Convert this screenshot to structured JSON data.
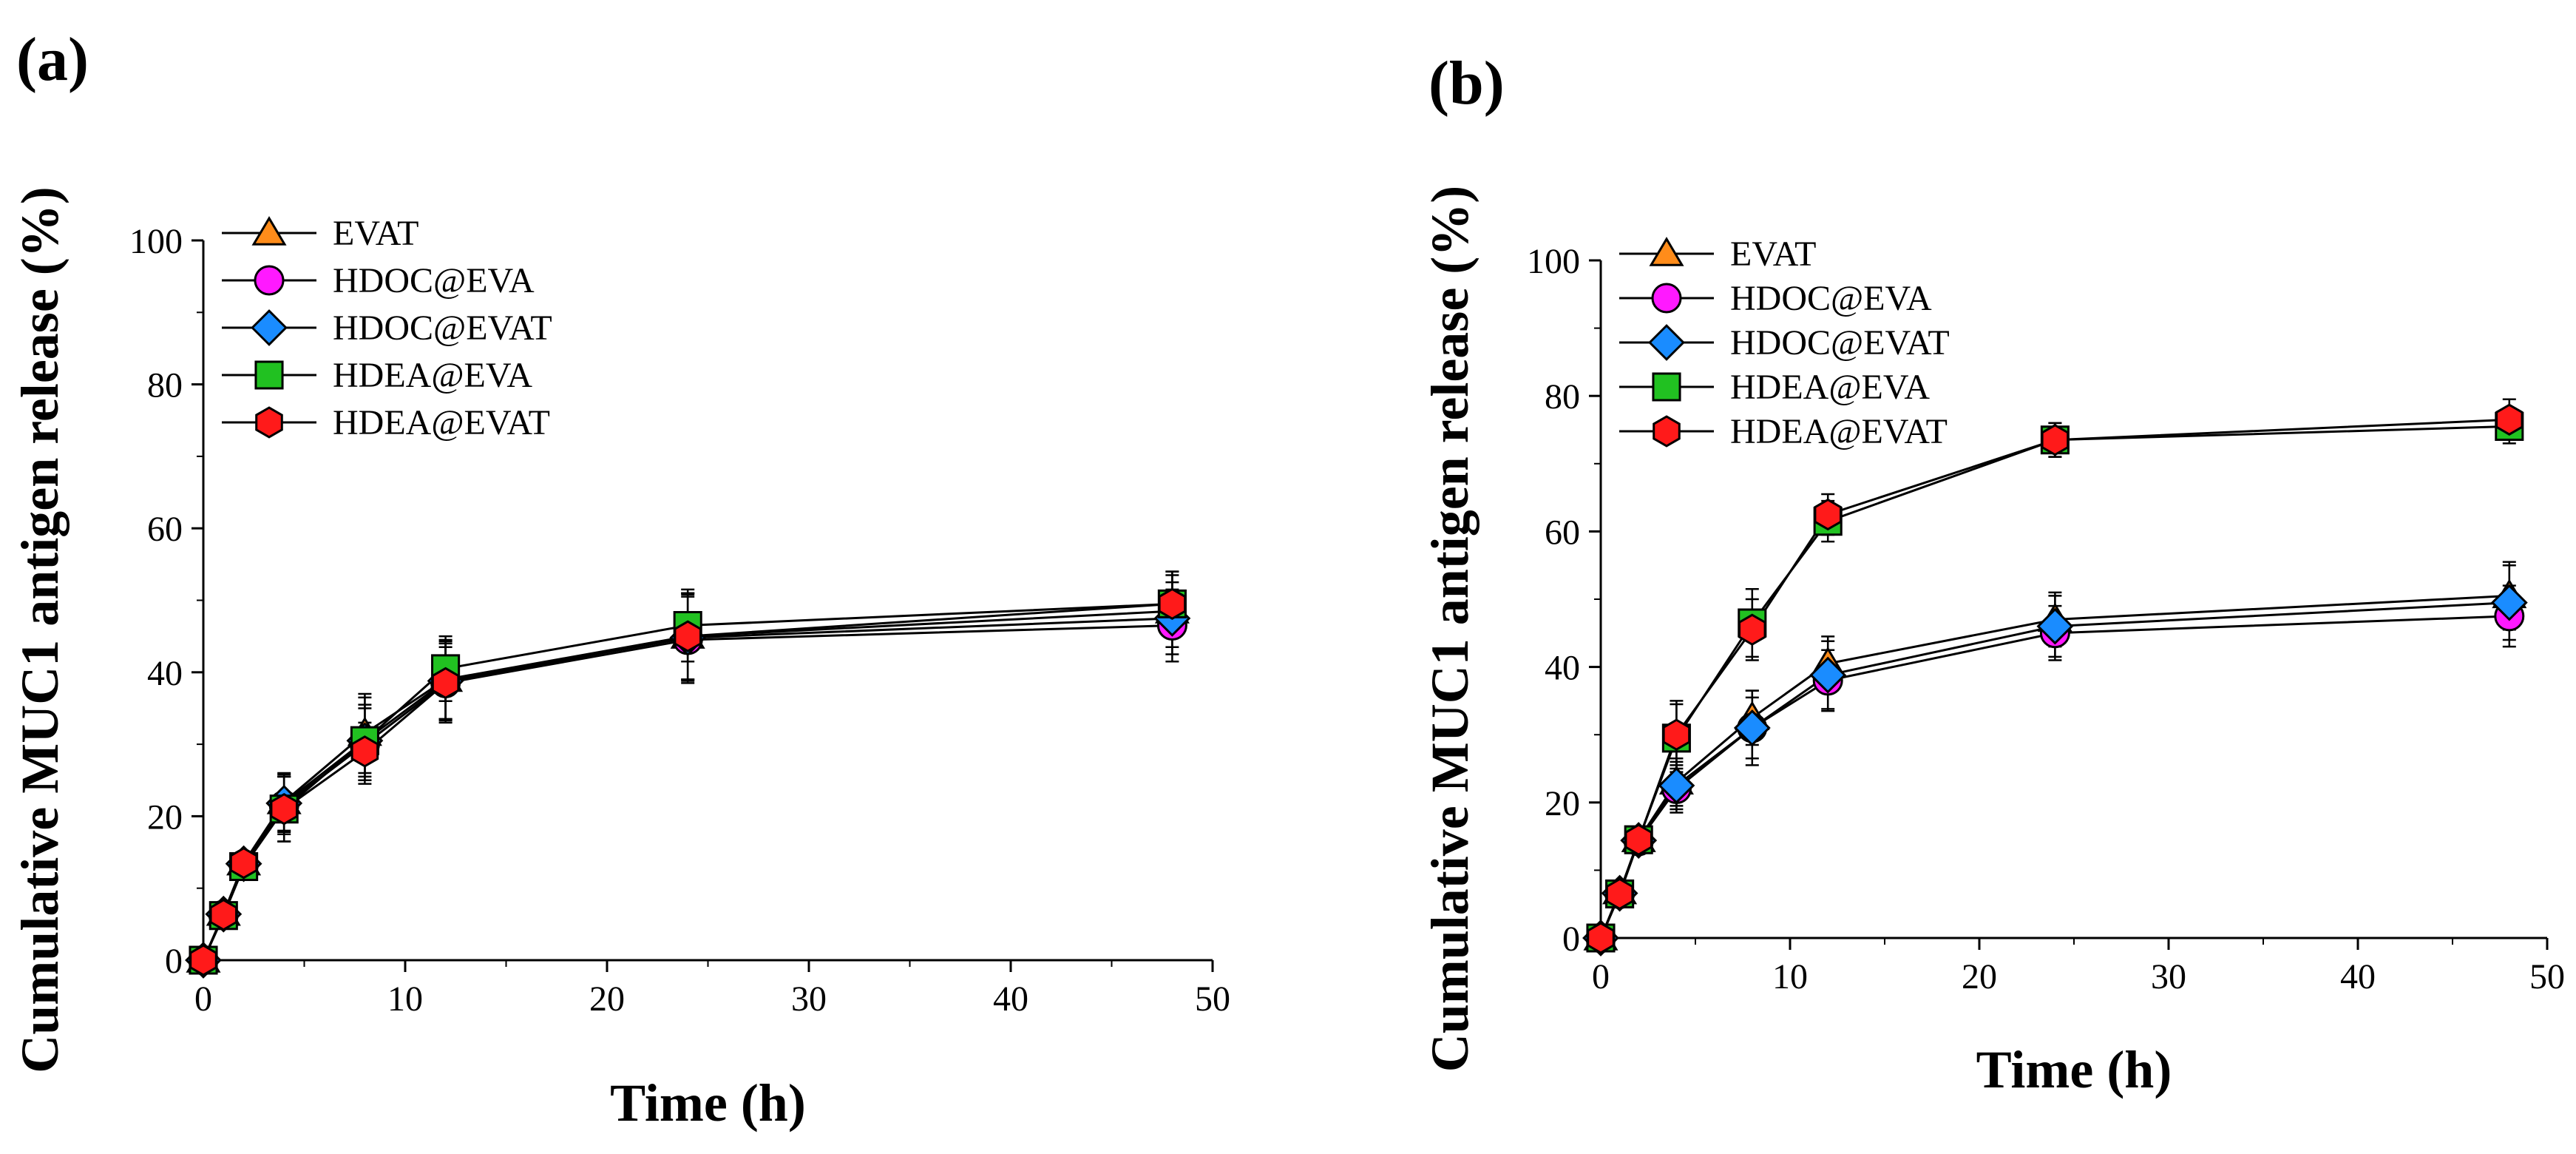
{
  "figure": {
    "panel_labels": [
      "(a)",
      "(b)"
    ]
  },
  "chart_data": [
    {
      "type": "line",
      "panel": "(a)",
      "title": "",
      "xlabel": "Time (h)",
      "ylabel": "Cumulative MUC1 antigen release (%)",
      "xlim": [
        0,
        50
      ],
      "ylim": [
        0,
        100
      ],
      "xticks": [
        "0",
        "10",
        "20",
        "30",
        "40",
        "50"
      ],
      "yticks": [
        "0",
        "20",
        "40",
        "60",
        "80",
        "100"
      ],
      "legend_position": "top-left",
      "x": [
        0,
        1,
        2,
        4,
        8,
        12,
        24,
        48
      ],
      "series": [
        {
          "name": "EVAT",
          "marker": "triangle",
          "color": "#ff8c1a",
          "values": [
            0,
            6.5,
            13.5,
            22,
            31.5,
            39,
            45,
            48.5
          ],
          "errors": [
            0,
            1,
            1.5,
            4,
            5.5,
            5.5,
            6,
            5
          ]
        },
        {
          "name": "HDOC@EVA",
          "marker": "circle",
          "color": "#ff19ff",
          "values": [
            0,
            6.3,
            13.3,
            21.5,
            30,
            38.5,
            44.5,
            46.5
          ],
          "errors": [
            0,
            1,
            1.5,
            4,
            5,
            5.5,
            6,
            5
          ]
        },
        {
          "name": "HDOC@EVAT",
          "marker": "diamond",
          "color": "#1a8cff",
          "values": [
            0,
            6.4,
            13.4,
            21.8,
            30.5,
            38.8,
            44.8,
            47.5
          ],
          "errors": [
            0,
            1,
            1.5,
            4,
            5,
            5.5,
            6,
            5
          ]
        },
        {
          "name": "HDEA@EVA",
          "marker": "square",
          "color": "#21c121",
          "values": [
            0,
            6.2,
            13,
            21,
            30.5,
            40.5,
            46.5,
            49.5
          ],
          "errors": [
            0,
            1,
            1.5,
            4.5,
            6,
            4.5,
            5,
            4.5
          ]
        },
        {
          "name": "HDEA@EVAT",
          "marker": "hexagon",
          "color": "#ff1a1a",
          "values": [
            0,
            6.3,
            13.5,
            21,
            29,
            38.5,
            45,
            49.5
          ],
          "errors": [
            0,
            1,
            1.5,
            4.5,
            4,
            5,
            6,
            4.5
          ]
        }
      ]
    },
    {
      "type": "line",
      "panel": "(b)",
      "title": "",
      "xlabel": "Time (h)",
      "ylabel": "Cumulative MUC1 antigen release (%)",
      "xlim": [
        0,
        50
      ],
      "ylim": [
        0,
        100
      ],
      "xticks": [
        "0",
        "10",
        "20",
        "30",
        "40",
        "50"
      ],
      "yticks": [
        "0",
        "20",
        "40",
        "60",
        "80",
        "100"
      ],
      "legend_position": "top-left",
      "x": [
        0,
        1,
        2,
        4,
        8,
        12,
        24,
        48
      ],
      "series": [
        {
          "name": "EVAT",
          "marker": "triangle",
          "color": "#ff8c1a",
          "values": [
            0,
            6.8,
            14.5,
            23,
            32.5,
            40.5,
            47,
            50.5
          ],
          "errors": [
            0,
            1,
            1.5,
            3.5,
            4,
            4,
            4,
            5
          ]
        },
        {
          "name": "HDOC@EVA",
          "marker": "circle",
          "color": "#ff19ff",
          "values": [
            0,
            6.5,
            14.3,
            22,
            31,
            38,
            45,
            47.5
          ],
          "errors": [
            0,
            1,
            1.5,
            3.5,
            4.5,
            4.5,
            4,
            4.5
          ]
        },
        {
          "name": "HDOC@EVAT",
          "marker": "diamond",
          "color": "#1a8cff",
          "values": [
            0,
            6.6,
            14.4,
            22.5,
            31,
            38.8,
            46,
            49.5
          ],
          "errors": [
            0,
            1,
            1.5,
            3.5,
            5.5,
            5,
            4.5,
            5.5
          ]
        },
        {
          "name": "HDEA@EVA",
          "marker": "square",
          "color": "#21c121",
          "values": [
            0,
            6.5,
            14.5,
            29.5,
            46.5,
            61.5,
            73.5,
            75.5
          ],
          "errors": [
            0,
            1,
            1.5,
            5,
            5,
            3,
            2.5,
            2.5
          ]
        },
        {
          "name": "HDEA@EVAT",
          "marker": "hexagon",
          "color": "#ff1a1a",
          "values": [
            0,
            6.5,
            14.5,
            30,
            45.5,
            62.5,
            73.5,
            76.5
          ],
          "errors": [
            0,
            1,
            1.5,
            5,
            4.5,
            3,
            2.5,
            3
          ]
        }
      ]
    }
  ]
}
